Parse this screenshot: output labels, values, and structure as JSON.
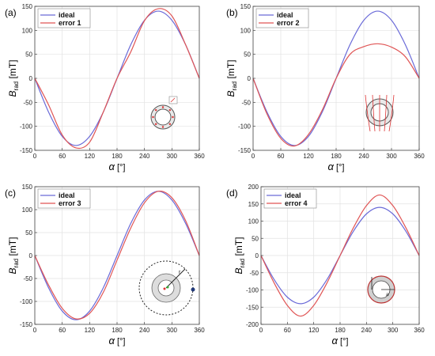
{
  "chart_data": [
    {
      "panel": "(a)",
      "type": "line",
      "xlabel": "α [°]",
      "ylabel": "B_rad [mT]",
      "xlim": [
        0,
        360
      ],
      "ylim": [
        -150,
        150
      ],
      "xticks": [
        0,
        60,
        120,
        180,
        240,
        300,
        360
      ],
      "yticks": [
        150,
        100,
        50,
        0,
        -50,
        -100,
        -150
      ],
      "legend": "top-left",
      "grid": true,
      "inset_icon": "ring-magnet-with-tilted-segments-icon",
      "series": [
        {
          "name": "ideal",
          "color": "#6a6ad8",
          "x": [
            0,
            30,
            60,
            90,
            120,
            150,
            180,
            210,
            240,
            270,
            300,
            330,
            360
          ],
          "y": [
            0,
            -70,
            -121,
            -140,
            -121,
            -70,
            0,
            70,
            121,
            140,
            121,
            70,
            0
          ]
        },
        {
          "name": "error 1",
          "color": "#e05555",
          "x": [
            0,
            30,
            60,
            90,
            120,
            150,
            180,
            210,
            240,
            270,
            300,
            330,
            360
          ],
          "y": [
            0,
            -55,
            -118,
            -145,
            -133,
            -70,
            0,
            55,
            120,
            145,
            130,
            70,
            0
          ]
        }
      ]
    },
    {
      "panel": "(b)",
      "type": "line",
      "xlabel": "α [°]",
      "ylabel": "B_rad [mT]",
      "xlim": [
        0,
        360
      ],
      "ylim": [
        -150,
        150
      ],
      "xticks": [
        0,
        60,
        120,
        180,
        240,
        300,
        360
      ],
      "yticks": [
        150,
        100,
        50,
        0,
        -50,
        -100,
        -150
      ],
      "legend": "top-left",
      "grid": true,
      "inset_icon": "ring-magnet-in-field-icon",
      "series": [
        {
          "name": "ideal",
          "color": "#6a6ad8",
          "x": [
            0,
            30,
            60,
            90,
            120,
            150,
            180,
            210,
            240,
            270,
            300,
            330,
            360
          ],
          "y": [
            0,
            -70,
            -121,
            -140,
            -121,
            -70,
            0,
            70,
            121,
            140,
            121,
            70,
            0
          ]
        },
        {
          "name": "error 2",
          "color": "#e05555",
          "x": [
            0,
            30,
            60,
            90,
            120,
            150,
            180,
            210,
            240,
            270,
            300,
            330,
            360
          ],
          "y": [
            0,
            -74,
            -125,
            -141,
            -117,
            -66,
            0,
            50,
            66,
            72,
            65,
            45,
            0
          ]
        }
      ]
    },
    {
      "panel": "(c)",
      "type": "line",
      "xlabel": "α [°]",
      "ylabel": "B_rad [mT]",
      "xlim": [
        0,
        360
      ],
      "ylim": [
        -150,
        150
      ],
      "xticks": [
        0,
        60,
        120,
        180,
        240,
        300,
        360
      ],
      "yticks": [
        150,
        100,
        50,
        0,
        -50,
        -100,
        -150
      ],
      "legend": "top-left",
      "grid": true,
      "inset_icon": "ring-magnet-with-offset-sensor-icon",
      "inset_label": "r",
      "series": [
        {
          "name": "ideal",
          "color": "#6a6ad8",
          "x": [
            0,
            30,
            60,
            90,
            120,
            150,
            180,
            210,
            240,
            270,
            300,
            330,
            360
          ],
          "y": [
            0,
            -70,
            -121,
            -140,
            -121,
            -70,
            0,
            70,
            121,
            140,
            121,
            70,
            0
          ]
        },
        {
          "name": "error 3",
          "color": "#e05555",
          "x": [
            0,
            30,
            60,
            90,
            120,
            150,
            180,
            210,
            240,
            270,
            300,
            330,
            360
          ],
          "y": [
            0,
            -64,
            -115,
            -138,
            -126,
            -80,
            -10,
            60,
            115,
            140,
            126,
            76,
            0
          ]
        }
      ]
    },
    {
      "panel": "(d)",
      "type": "line",
      "xlabel": "α [°]",
      "ylabel": "B_rad [mT]",
      "xlim": [
        0,
        360
      ],
      "ylim": [
        -200,
        200
      ],
      "xticks": [
        0,
        60,
        120,
        180,
        240,
        300,
        360
      ],
      "yticks": [
        200,
        150,
        100,
        50,
        0,
        -50,
        -100,
        -150,
        -200
      ],
      "legend": "top-left",
      "grid": true,
      "inset_icon": "ring-magnet-with-radius-error-icon",
      "inset_label": "a",
      "series": [
        {
          "name": "ideal",
          "color": "#6a6ad8",
          "x": [
            0,
            30,
            60,
            90,
            120,
            150,
            180,
            210,
            240,
            270,
            300,
            330,
            360
          ],
          "y": [
            0,
            -70,
            -121,
            -140,
            -121,
            -70,
            0,
            70,
            121,
            140,
            121,
            70,
            0
          ]
        },
        {
          "name": "error 4",
          "color": "#e05555",
          "x": [
            0,
            30,
            60,
            90,
            120,
            150,
            180,
            210,
            240,
            270,
            300,
            330,
            360
          ],
          "y": [
            0,
            -80,
            -145,
            -176,
            -145,
            -80,
            0,
            80,
            145,
            176,
            145,
            80,
            0
          ]
        }
      ]
    }
  ],
  "text": {
    "ylabel_main": "B",
    "ylabel_sub": "rad",
    "ylabel_unit": " [mT]",
    "xlabel_symbol": "α",
    "xlabel_unit": " [°]"
  }
}
